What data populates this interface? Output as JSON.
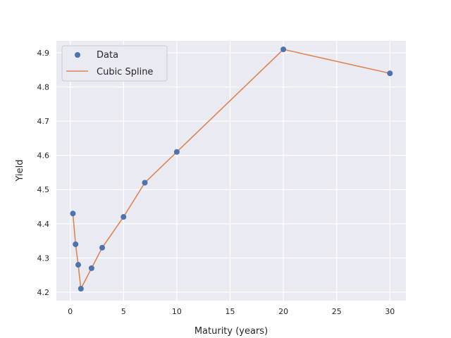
{
  "chart_data": {
    "type": "scatter",
    "title": "",
    "xlabel": "Maturity (years)",
    "ylabel": "Yield",
    "xlim": [
      -1.3,
      31.5
    ],
    "ylim": [
      4.175,
      4.935
    ],
    "xticks": [
      0,
      5,
      10,
      15,
      20,
      25,
      30
    ],
    "yticks": [
      4.2,
      4.3,
      4.4,
      4.5,
      4.6,
      4.7,
      4.8,
      4.9
    ],
    "grid": true,
    "legend": {
      "placement": "top-left",
      "entries": [
        "Data",
        "Cubic Spline"
      ]
    },
    "series": [
      {
        "name": "Data",
        "kind": "scatter",
        "color": "#4c72b0",
        "x": [
          0.25,
          0.5,
          0.75,
          1,
          2,
          3,
          5,
          7,
          10,
          20,
          30
        ],
        "y": [
          4.43,
          4.34,
          4.28,
          4.21,
          4.27,
          4.33,
          4.42,
          4.52,
          4.61,
          4.91,
          4.84
        ]
      },
      {
        "name": "Cubic Spline",
        "kind": "line",
        "color": "#dd8452",
        "x": [
          0.25,
          0.5,
          0.75,
          1,
          2,
          3,
          5,
          7,
          10,
          20,
          30
        ],
        "y": [
          4.43,
          4.34,
          4.28,
          4.21,
          4.27,
          4.33,
          4.42,
          4.52,
          4.61,
          4.91,
          4.84
        ]
      }
    ]
  }
}
